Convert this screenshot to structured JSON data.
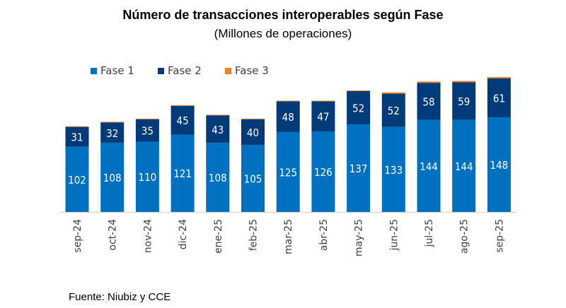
{
  "chart_data": {
    "type": "bar",
    "stacked": true,
    "title": "Número de transacciones interoperables según Fase",
    "subtitle": "(Millones de operaciones)",
    "source": "Fuente: Niubiz y CCE",
    "legend_position": "top-left",
    "grid": false,
    "categories": [
      "sep-24",
      "oct-24",
      "nov-24",
      "dic-24",
      "ene-25",
      "feb-25",
      "mar-25",
      "abr-25",
      "may-25",
      "jun-25",
      "jul-25",
      "ago-25",
      "sep-25"
    ],
    "series": [
      {
        "name": "Fase 1",
        "color": "#0070C0",
        "values": [
          102,
          108,
          110,
          121,
          108,
          105,
          125,
          126,
          137,
          133,
          144,
          144,
          148
        ]
      },
      {
        "name": "Fase 2",
        "color": "#003A78",
        "values": [
          31,
          32,
          35,
          45,
          43,
          40,
          48,
          47,
          52,
          52,
          58,
          59,
          61
        ]
      },
      {
        "name": "Fase 3",
        "color": "#F5821F",
        "values": [
          1,
          1,
          1,
          1,
          1,
          1,
          1,
          1,
          1,
          2,
          2,
          2,
          2
        ]
      }
    ],
    "ylim": [
      0,
      220
    ]
  }
}
